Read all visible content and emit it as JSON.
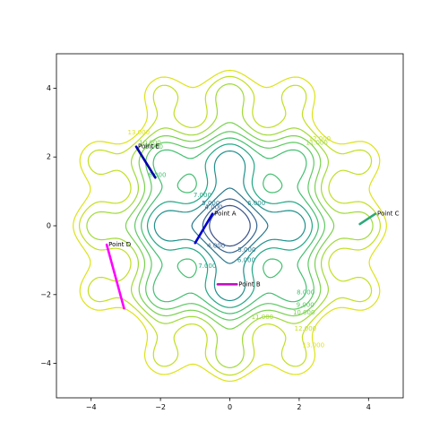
{
  "chart_data": {
    "type": "contour",
    "xlim": [
      -5,
      5
    ],
    "ylim": [
      -5,
      5
    ],
    "x_ticks": [
      -4,
      -2,
      0,
      2,
      4
    ],
    "y_ticks": [
      -4,
      -2,
      0,
      2,
      4
    ],
    "x_tick_labels": [
      "−4",
      "−2",
      "0",
      "2",
      "4"
    ],
    "y_tick_labels": [
      "−4",
      "−2",
      "0",
      "2",
      "4"
    ],
    "grid": false,
    "function_shape": "radial bowl with cos ripples",
    "colormap": "viridis",
    "contour_levels": [
      {
        "value": 3.0,
        "label": "",
        "color": "#3b528b"
      },
      {
        "value": 4.0,
        "label": "4.000",
        "color": "#33638d"
      },
      {
        "value": 5.0,
        "label": "5.000",
        "color": "#2a788e"
      },
      {
        "value": 6.0,
        "label": "6.000",
        "color": "#21918c"
      },
      {
        "value": 7.0,
        "label": "7.000",
        "color": "#22a884"
      },
      {
        "value": 8.0,
        "label": "8.000",
        "color": "#44bf70"
      },
      {
        "value": 9.0,
        "label": "9.000",
        "color": "#5ec962"
      },
      {
        "value": 10.0,
        "label": "10.000",
        "color": "#7ad151"
      },
      {
        "value": 11.0,
        "label": "11.000",
        "color": "#a0da39"
      },
      {
        "value": 12.0,
        "label": "12.000",
        "color": "#c2df23"
      },
      {
        "value": 13.0,
        "label": "13.000",
        "color": "#dde318"
      }
    ],
    "segments": [
      {
        "name": "Point A",
        "color": "#0000cc",
        "start": [
          -1.0,
          -0.5
        ],
        "end": [
          -0.5,
          0.35
        ]
      },
      {
        "name": "Point B",
        "color": "#c010c0",
        "start": [
          -0.35,
          -1.7
        ],
        "end": [
          0.2,
          -1.7
        ]
      },
      {
        "name": "Point C",
        "color": "#2ca87a",
        "start": [
          3.75,
          0.05
        ],
        "end": [
          4.2,
          0.35
        ]
      },
      {
        "name": "Point D",
        "color": "#ff00ff",
        "start": [
          -3.55,
          -0.55
        ],
        "end": [
          -3.05,
          -2.4
        ]
      },
      {
        "name": "Point E",
        "color": "#0000aa",
        "start": [
          -2.7,
          2.3
        ],
        "end": [
          -2.15,
          1.4
        ]
      }
    ]
  }
}
